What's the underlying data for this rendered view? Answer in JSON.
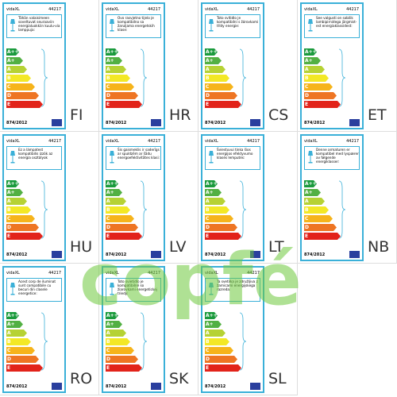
{
  "brand": "vidaXL",
  "code": "44217",
  "regulation": "874/2012",
  "classes": [
    "A++",
    "A+",
    "A",
    "B",
    "C",
    "D",
    "E"
  ],
  "labels": [
    {
      "lang": "FI",
      "text": "Tähän valaisimeen soveltuvat seuraaviin energialuokkiin kuulu-via lamppuja:"
    },
    {
      "lang": "HR",
      "text": "Ovo rasvjetno tijelo je kompatibilno sa žaruljama energetskih klase:"
    },
    {
      "lang": "CS",
      "text": "Toto svítidlo je kompatibilní s žárovkami třídy energie:"
    },
    {
      "lang": "ET",
      "text": "See valgusti on sobilik lambipirnidega järgmist-est energiaklassidest:"
    },
    {
      "lang": "HU",
      "text": "Ez a lámpatest kompatibilis izzók az energia osztályok"
    },
    {
      "lang": "LV",
      "text": "Šis gaismeklis ir saderīgs ar spuldzēm ar šādu energoefektivitātes klasi:"
    },
    {
      "lang": "LT",
      "text": "Šviestuvui tinka šios energijos efektyvumo klasės lemputės:"
    },
    {
      "lang": "NB",
      "text": "Denne armaturen er kompatibel med lyspærer av følgende energiklasser:"
    },
    {
      "lang": "RO",
      "text": "Acest corp de iluminat sunt compatibile cu becuri din clasele energetice:"
    },
    {
      "lang": "SK",
      "text": "Toto svietidlo je kompatibilné so žiarovkami energetickej triedy:"
    },
    {
      "lang": "SL",
      "text": "Ta svetilka je združljiva z žarnicami energijskega razreda:"
    }
  ],
  "watermark": "copfé"
}
